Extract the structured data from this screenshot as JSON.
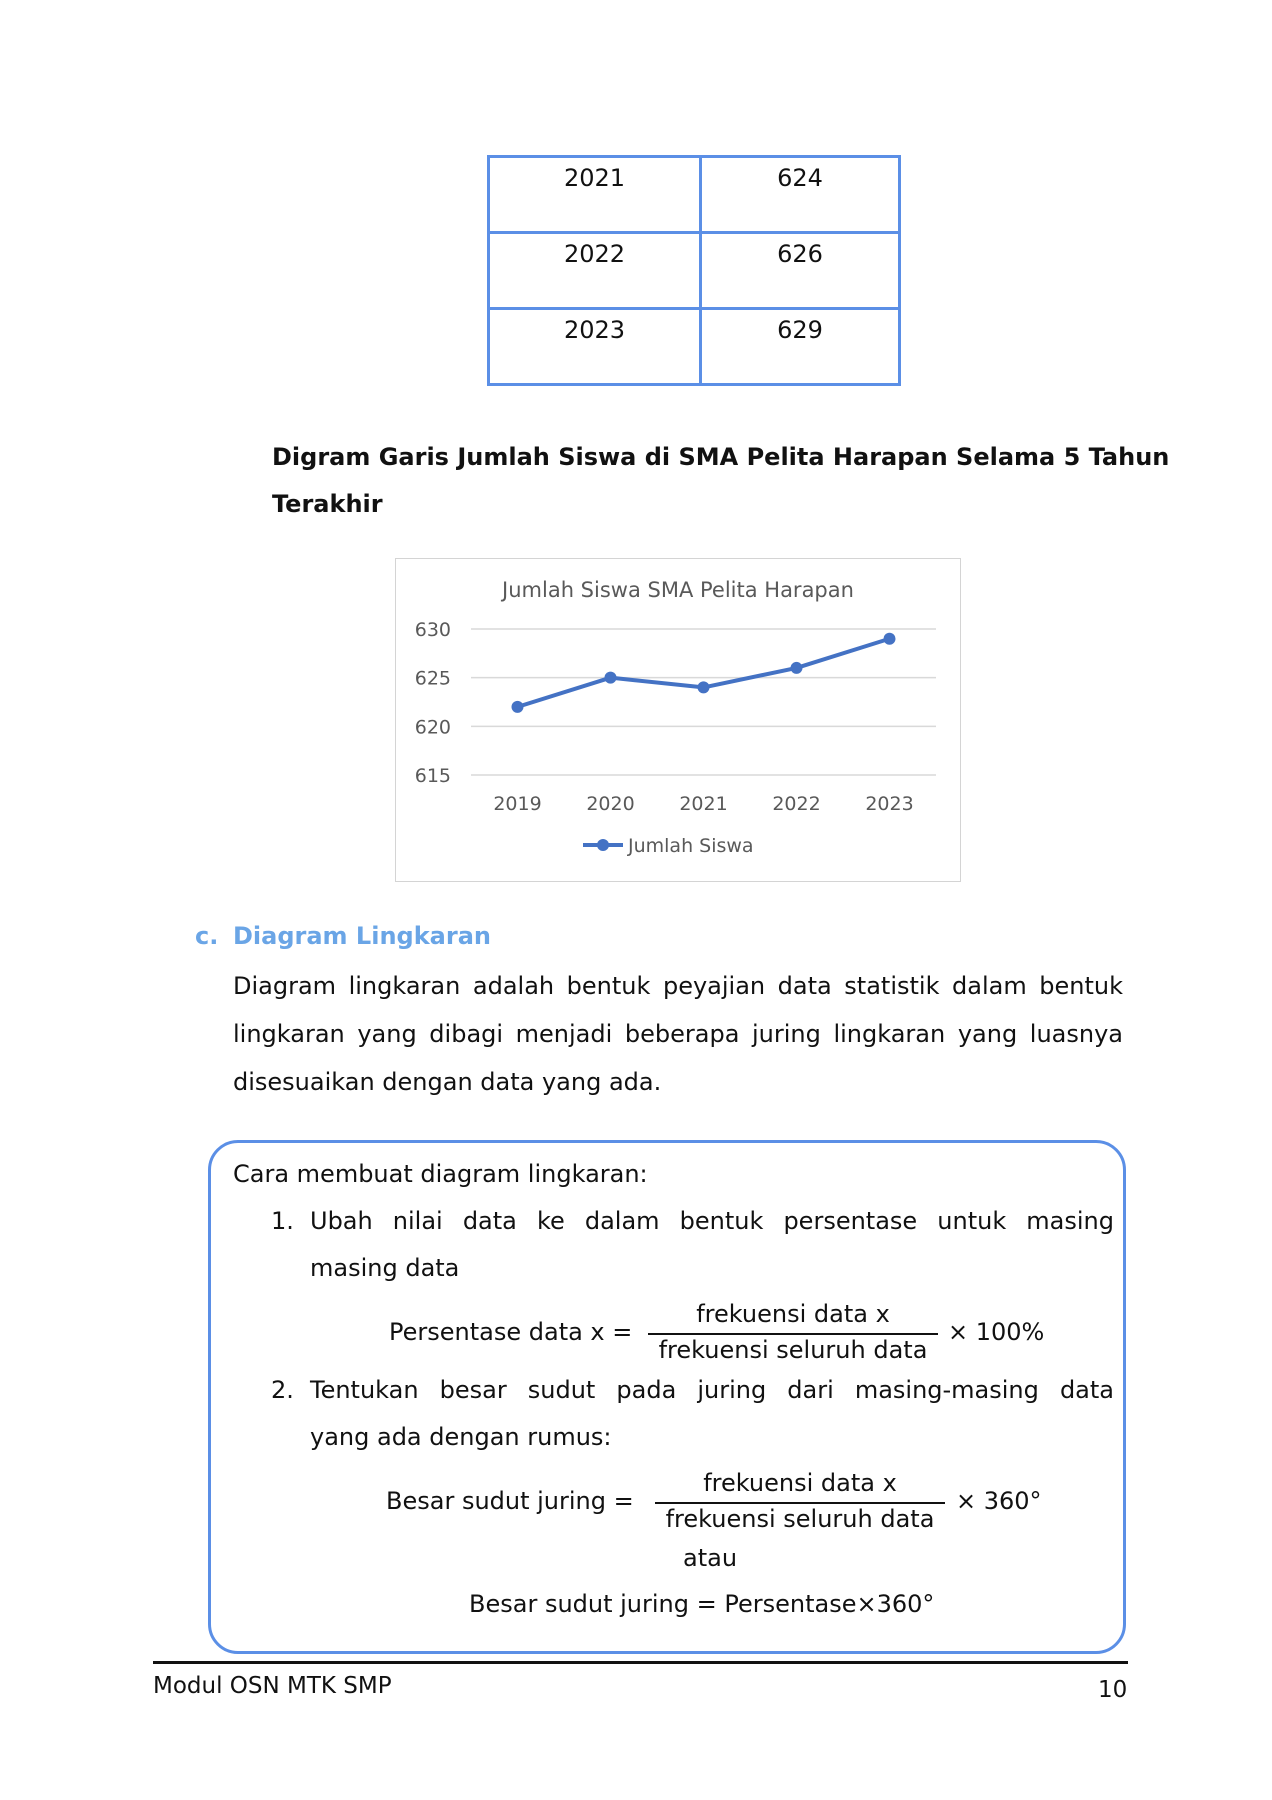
{
  "table": {
    "rows": [
      {
        "year": "2021",
        "value": "624"
      },
      {
        "year": "2022",
        "value": "626"
      },
      {
        "year": "2023",
        "value": "629"
      }
    ]
  },
  "heading": {
    "line1": "Digram Garis Jumlah Siswa di SMA Pelita Harapan Selama 5 Tahun",
    "line2": "Terakhir"
  },
  "chart_data": {
    "type": "line",
    "title": "Jumlah Siswa SMA Pelita Harapan",
    "categories": [
      "2019",
      "2020",
      "2021",
      "2022",
      "2023"
    ],
    "series": [
      {
        "name": "Jumlah Siswa",
        "values": [
          622,
          625,
          624,
          626,
          629
        ],
        "color": "#4472c4"
      }
    ],
    "ylim": [
      615,
      630
    ],
    "yticks": [
      "630",
      "625",
      "620",
      "615"
    ],
    "grid": true,
    "legend": "bottom"
  },
  "section": {
    "letter": "c.",
    "title": "Diagram Lingkaran",
    "paragraph": "Diagram lingkaran adalah bentuk peyajian data statistik dalam bentuk lingkaran yang dibagi menjadi beberapa juring lingkaran yang luasnya disesuaikan dengan data yang ada."
  },
  "box": {
    "intro": "Cara membuat diagram lingkaran:",
    "step1_num": "1.",
    "step1_line1": "Ubah nilai data ke dalam bentuk persentase untuk masing",
    "step1_line2": "masing data",
    "formula1": {
      "lhs": "Persentase data x =",
      "numerator": "frekuensi data x",
      "denominator": "frekuensi seluruh data",
      "rhs": "× 100%"
    },
    "step2_num": "2.",
    "step2_line1": "Tentukan besar sudut pada juring dari masing-masing data",
    "step2_line2": "yang ada dengan rumus:",
    "formula2": {
      "lhs": "Besar sudut juring =",
      "numerator": "frekuensi data x",
      "denominator": "frekuensi seluruh data",
      "rhs": "× 360°"
    },
    "or": "atau",
    "formula3": "Besar sudut juring = Persentase×360°"
  },
  "footer": {
    "left": "Modul OSN MTK SMP",
    "page": "10"
  }
}
